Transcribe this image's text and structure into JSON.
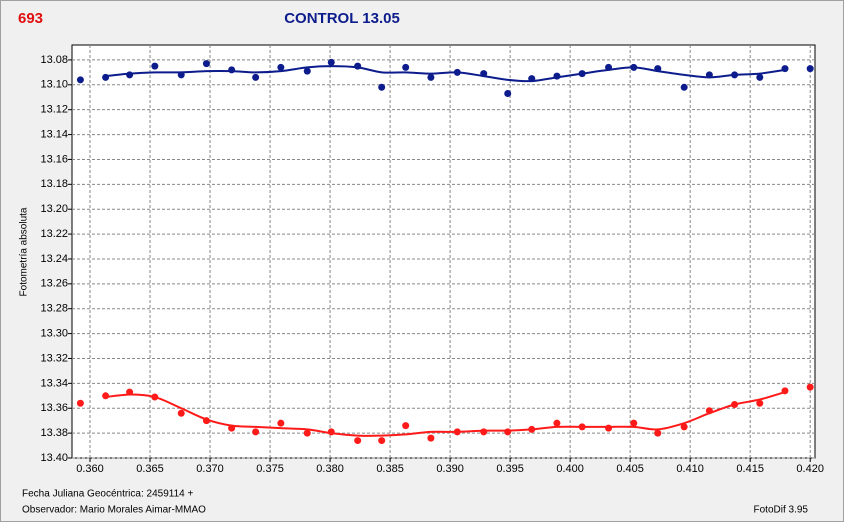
{
  "chart_data": {
    "type": "scatter",
    "label": "693",
    "title": "CONTROL 13.05",
    "ylabel": "Fotometría absoluta",
    "xlabel": "Fecha Juliana Geocéntrica: 2459114 +",
    "observer": "Observador: Mario Morales Aimar-MMAO",
    "software": "FotoDif 3.95",
    "x": [
      0.3592,
      0.3613,
      0.3633,
      0.3654,
      0.3676,
      0.3697,
      0.3718,
      0.3738,
      0.3759,
      0.3781,
      0.3801,
      0.3823,
      0.3843,
      0.3863,
      0.3884,
      0.3906,
      0.3928,
      0.3948,
      0.3968,
      0.3989,
      0.401,
      0.4032,
      0.4053,
      0.4073,
      0.4095,
      0.4116,
      0.4137,
      0.4158,
      0.4179,
      0.42
    ],
    "series": [
      {
        "color": "#0d1c8c",
        "values": [
          13.096,
          13.094,
          13.092,
          13.085,
          13.092,
          13.083,
          13.088,
          13.094,
          13.086,
          13.089,
          13.082,
          13.085,
          13.102,
          13.086,
          13.094,
          13.09,
          13.091,
          13.107,
          13.095,
          13.093,
          13.091,
          13.086,
          13.086,
          13.087,
          13.102,
          13.092,
          13.092,
          13.094,
          13.087,
          13.087
        ],
        "fit_values": [
          null,
          13.093,
          13.091,
          13.09,
          13.09,
          13.089,
          13.089,
          13.09,
          13.089,
          13.086,
          13.085,
          13.086,
          13.09,
          13.09,
          13.091,
          13.09,
          13.093,
          13.096,
          13.097,
          13.094,
          13.091,
          13.088,
          13.086,
          13.089,
          13.092,
          13.094,
          13.092,
          13.091,
          13.088,
          null
        ]
      },
      {
        "color": "#ff1a1a",
        "values": [
          13.356,
          13.35,
          13.347,
          13.351,
          13.364,
          13.37,
          13.376,
          13.379,
          13.372,
          13.38,
          13.379,
          13.386,
          13.386,
          13.374,
          13.384,
          13.379,
          13.379,
          13.379,
          13.377,
          13.372,
          13.375,
          13.376,
          13.372,
          13.38,
          13.375,
          13.362,
          13.357,
          13.356,
          13.346,
          13.343
        ],
        "fit_values": [
          null,
          13.351,
          13.349,
          13.351,
          13.36,
          13.369,
          13.374,
          13.375,
          13.376,
          13.377,
          13.38,
          13.382,
          13.382,
          13.381,
          13.379,
          13.379,
          13.378,
          13.378,
          13.377,
          13.375,
          13.375,
          13.375,
          13.375,
          13.377,
          13.372,
          13.364,
          13.357,
          13.353,
          13.347,
          null
        ]
      }
    ],
    "xlim": [
      0.3585,
      0.4204
    ],
    "ylim": [
      13.068,
      13.4
    ],
    "y_inverted": true,
    "grid": true,
    "xticks": [
      {
        "value": 0.36,
        "label": "0.360"
      },
      0.365,
      {
        "value": 0.37,
        "label": "0.370"
      },
      0.375,
      {
        "value": 0.38,
        "label": "0.380"
      },
      0.385,
      {
        "value": 0.39,
        "label": "0.390"
      },
      0.395,
      {
        "value": 0.4,
        "label": "0.400"
      },
      0.405,
      {
        "value": 0.41,
        "label": "0.410"
      },
      0.415,
      {
        "value": 0.42,
        "label": "0.420"
      }
    ],
    "yticks": [
      13.08,
      {
        "value": 13.1,
        "label": "13.10"
      },
      13.12,
      13.14,
      13.16,
      13.18,
      {
        "value": 13.2,
        "label": "13.20"
      },
      13.22,
      13.24,
      13.26,
      13.28,
      {
        "value": 13.3,
        "label": "13.30"
      },
      13.32,
      13.34,
      13.36,
      13.38,
      {
        "value": 13.4,
        "label": "13.40"
      }
    ]
  }
}
